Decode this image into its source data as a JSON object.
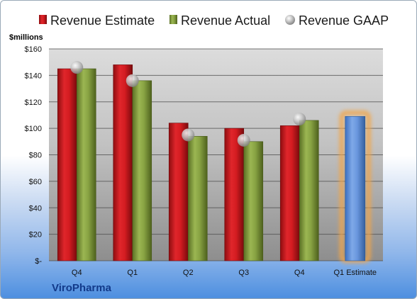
{
  "chart_data": {
    "type": "bar",
    "company": "ViroPharma",
    "unit_label": "$millions",
    "categories": [
      "Q4",
      "Q1",
      "Q2",
      "Q3",
      "Q4",
      "Q1 Estimate"
    ],
    "ylim": [
      0,
      160
    ],
    "yticks": [
      0,
      20,
      40,
      60,
      80,
      100,
      120,
      140,
      160
    ],
    "ytick_labels": [
      "$-",
      "$20",
      "$40",
      "$60",
      "$80",
      "$100",
      "$120",
      "$140",
      "$160"
    ],
    "grid": true,
    "legend_position": "top",
    "series": [
      {
        "name": "Revenue Estimate",
        "kind": "bar",
        "color": "#c8171c",
        "values": [
          145,
          148,
          104,
          100,
          102,
          null
        ]
      },
      {
        "name": "Revenue Actual",
        "kind": "bar",
        "color": "#7f9a3a",
        "values": [
          145,
          136,
          94,
          90,
          106,
          null
        ]
      },
      {
        "name": "Revenue GAAP",
        "kind": "marker",
        "color": "#a8a8a8",
        "values": [
          146,
          136,
          95,
          91,
          107,
          null
        ]
      }
    ],
    "highlight": {
      "category": "Q1 Estimate",
      "value": 109,
      "color": "#5b8fd9",
      "glow": "#f2a54a"
    }
  }
}
